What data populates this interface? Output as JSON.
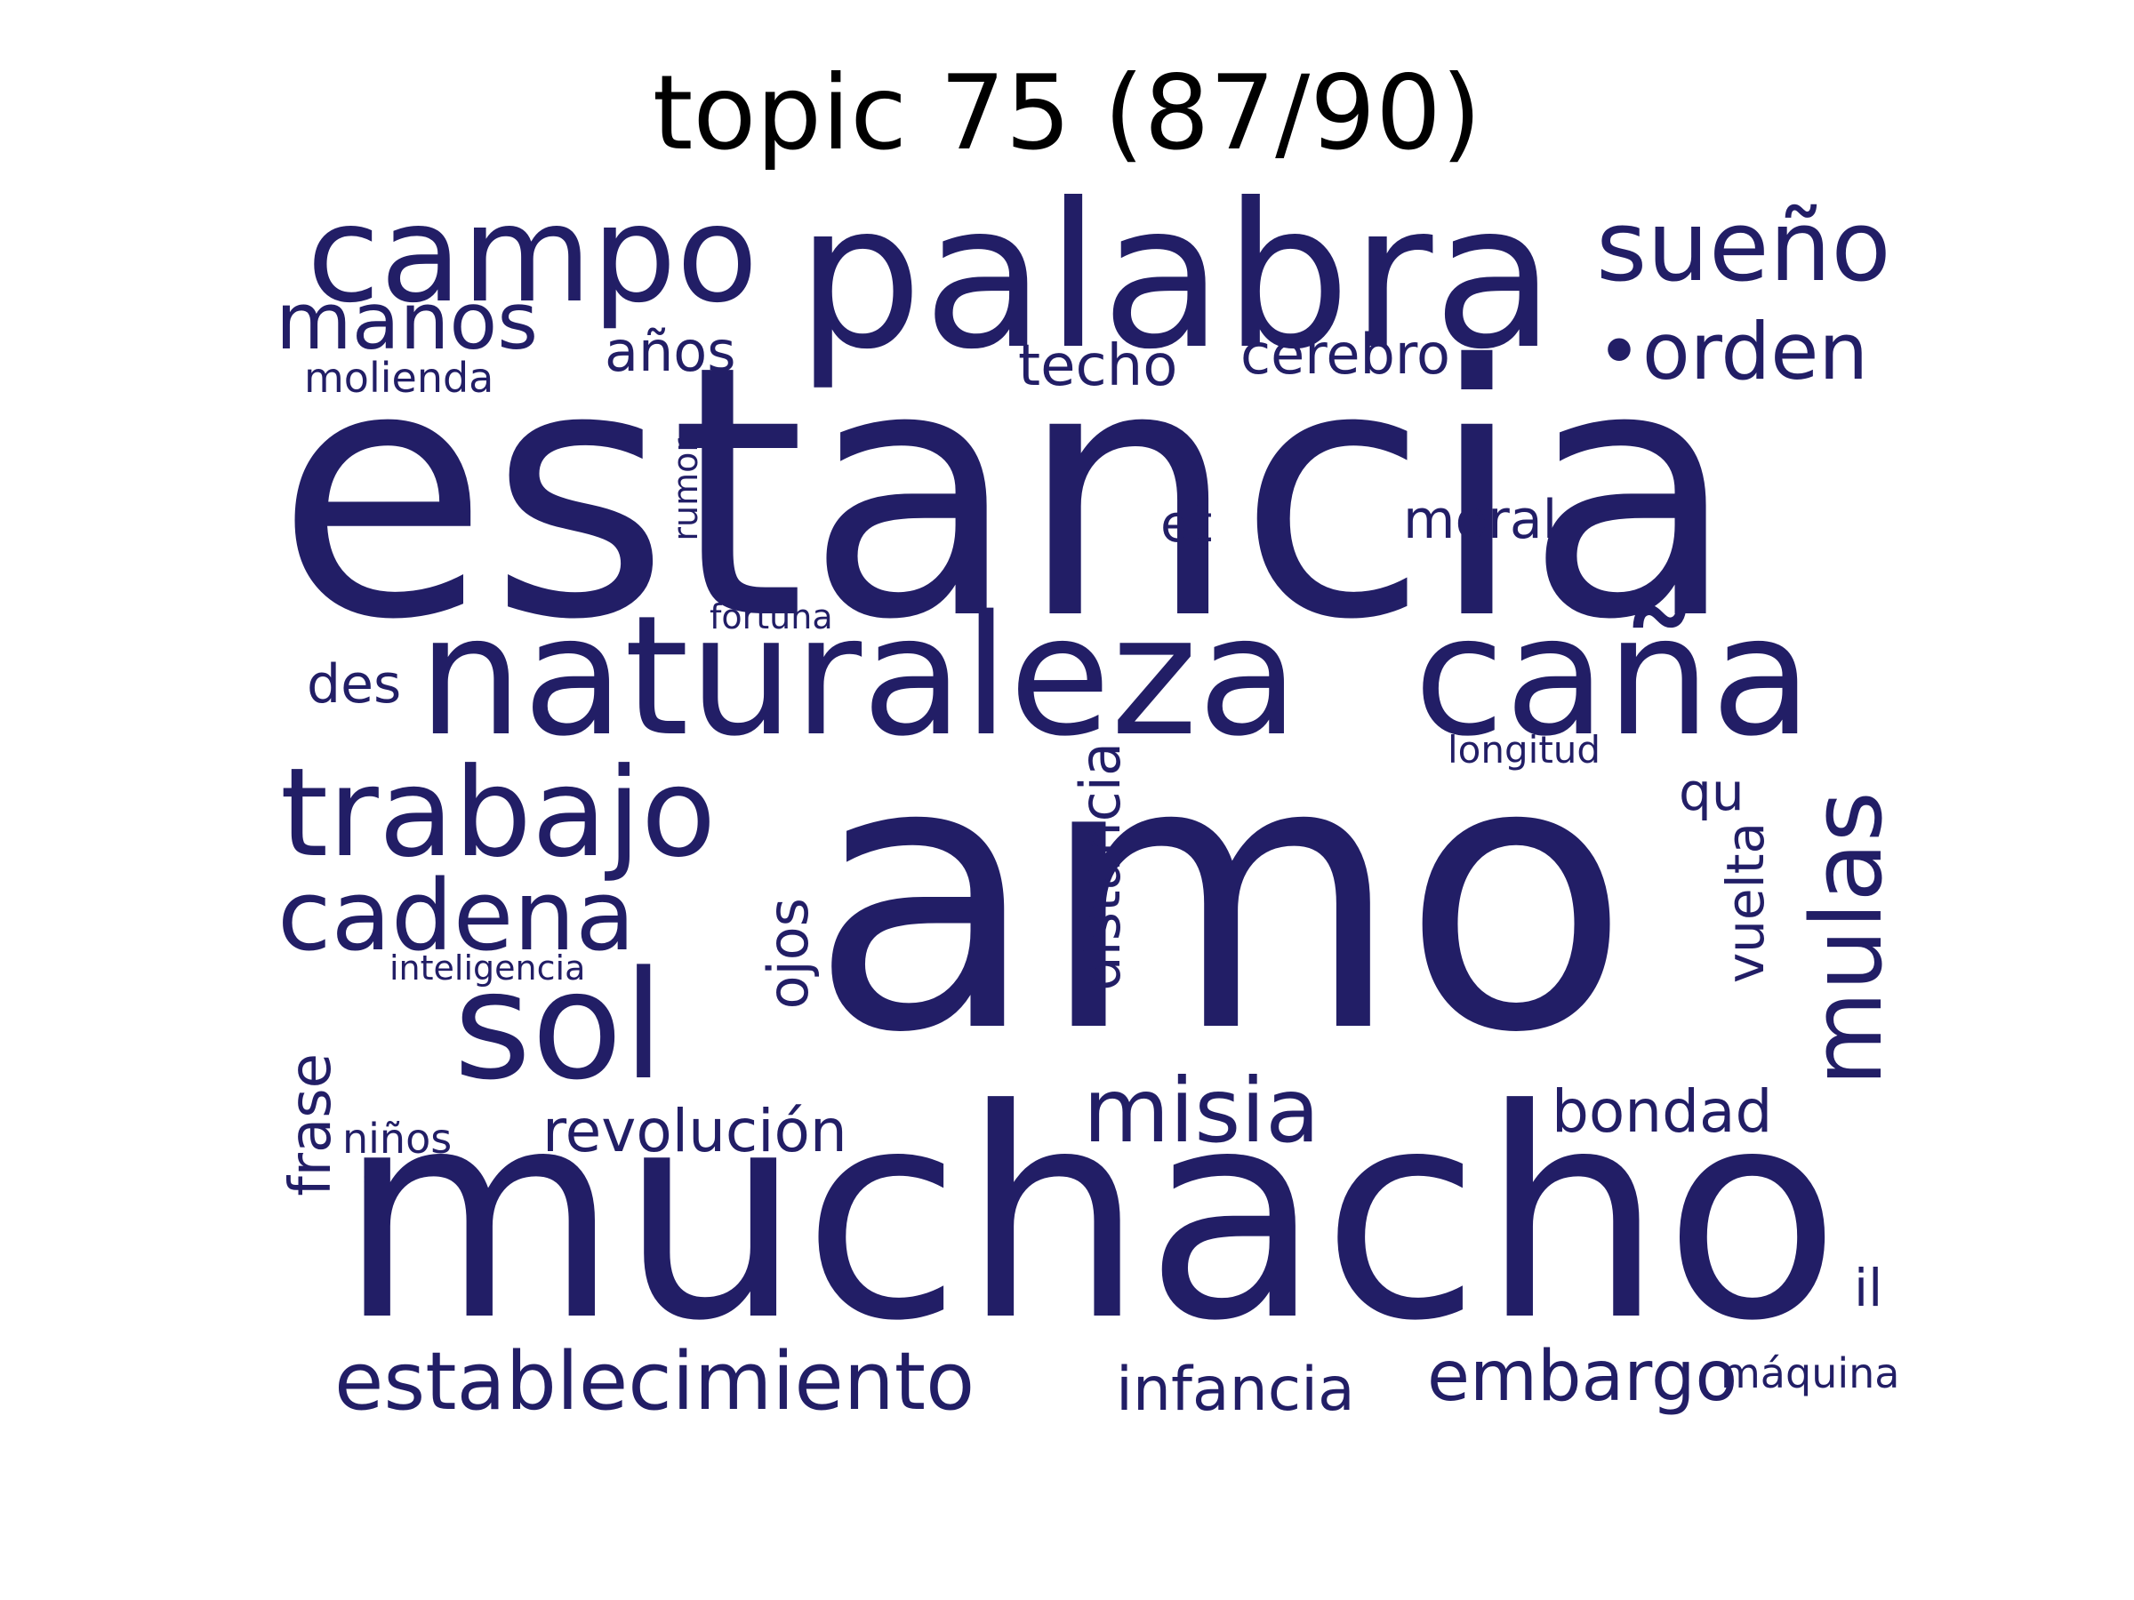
{
  "title": "topic 75 (87/90)",
  "word_color": "#221e66",
  "title_color": "#000000",
  "words": {
    "estancia": "estancia",
    "amo": "amo",
    "muchacho": "muchacho",
    "palabra": "palabra",
    "naturaleza": "naturaleza",
    "cana": "caña",
    "campo": "campo",
    "sueno": "sueño",
    "trabajo": "trabajo",
    "sol": "sol",
    "mulas": "mulas",
    "cadena": "cadena",
    "manos": "manos",
    "orden": "•orden",
    "misia": "misia",
    "establecimiento": "establecimiento",
    "embargo": "embargo",
    "infancia": "infancia",
    "revolucion": "revolución",
    "bondad": "bondad",
    "distancia": "distancia",
    "ojos": "ojos",
    "vuelta": "vuelta",
    "frase": "frase",
    "anos": "años",
    "techo": "techo",
    "cerebro": "cerebro",
    "moral": "moral",
    "et": "et",
    "des": "des",
    "qu": "qu",
    "il": "il",
    "molienda": "molienda",
    "rumor": "rumor",
    "fortuna": "fortuna",
    "longitud": "longitud",
    "inteligencia": "inteligencia",
    "ninos": "niños",
    "maquina": "máquina"
  }
}
